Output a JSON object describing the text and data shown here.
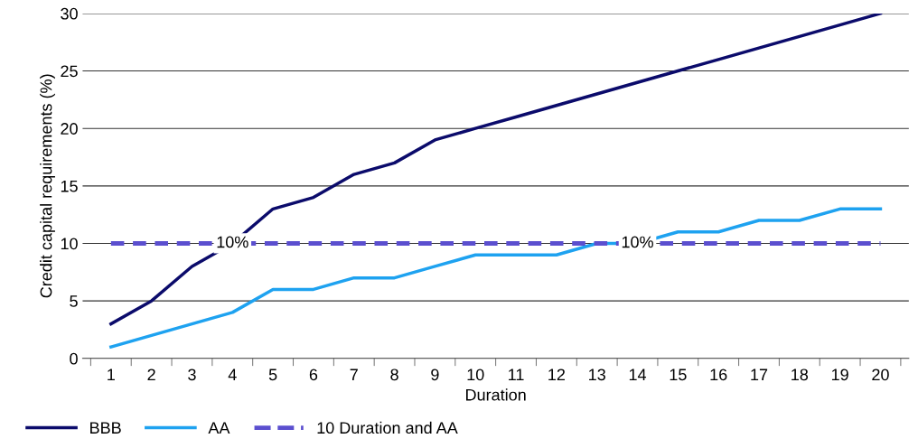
{
  "chart_data": {
    "type": "line",
    "xlabel": "Duration",
    "ylabel": "Credit capital requirements (%)",
    "categories": [
      "1",
      "2",
      "3",
      "4",
      "5",
      "6",
      "7",
      "8",
      "9",
      "10",
      "11",
      "12",
      "13",
      "14",
      "15",
      "16",
      "17",
      "18",
      "19",
      "20"
    ],
    "series": [
      {
        "name": "BBB",
        "color": "#0b0b6b",
        "values": [
          3,
          5,
          8,
          10,
          13,
          14,
          16,
          17,
          19,
          20,
          21,
          22,
          23,
          24,
          25,
          26,
          27,
          28,
          29,
          30
        ]
      },
      {
        "name": "AA",
        "color": "#1ea2f0",
        "values": [
          1,
          2,
          3,
          4,
          6,
          6,
          7,
          7,
          8,
          9,
          9,
          9,
          10,
          10,
          11,
          11,
          12,
          12,
          13,
          13
        ]
      },
      {
        "name": "10 Duration and AA",
        "color": "#5b4fcf",
        "line_style": "dashed",
        "values": [
          10,
          10,
          10,
          10,
          10,
          10,
          10,
          10,
          10,
          10,
          10,
          10,
          10,
          10,
          10,
          10,
          10,
          10,
          10,
          10
        ]
      }
    ],
    "annotations": [
      {
        "text": "10%",
        "x": "4",
        "y": 10
      },
      {
        "text": "10%",
        "x": "14",
        "y": 10
      }
    ],
    "ylim": [
      0,
      30
    ],
    "yticks": [
      0,
      5,
      10,
      15,
      20,
      25,
      30
    ],
    "grid": "y",
    "legend": "bottom left",
    "marker": "none"
  }
}
